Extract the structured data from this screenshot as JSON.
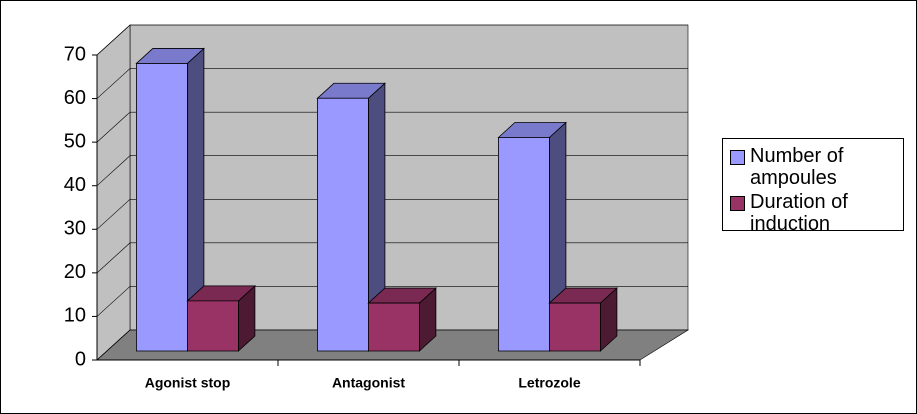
{
  "chart_data": {
    "type": "bar3d",
    "categories": [
      "Agonist stop",
      "Antagonist",
      "Letrozole"
    ],
    "series": [
      {
        "name": "Number of ampoules",
        "color": "#9999ff",
        "values": [
          66,
          58,
          49
        ]
      },
      {
        "name": "Duration of induction",
        "color": "#993366",
        "values": [
          11.5,
          11,
          11
        ]
      }
    ],
    "ylim": [
      0,
      70
    ],
    "yticks": [
      0,
      10,
      20,
      30,
      40,
      50,
      60,
      70
    ],
    "grid": true,
    "legend": "right"
  }
}
